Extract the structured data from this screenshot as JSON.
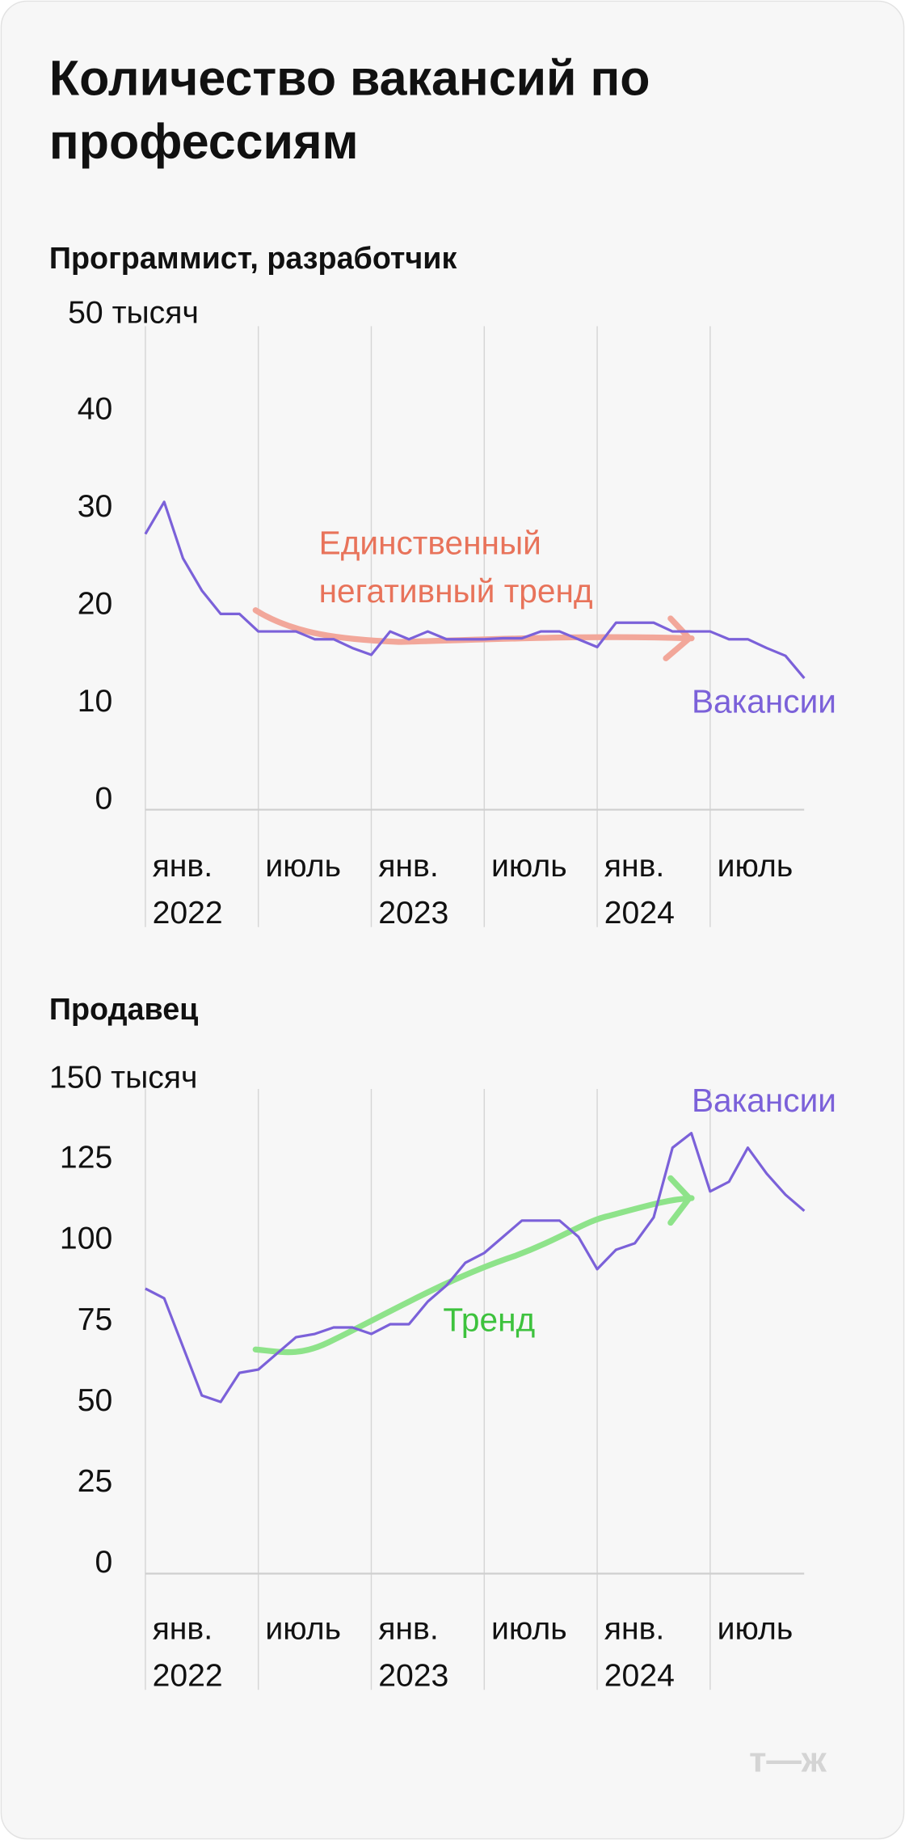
{
  "title": "Количество вакансий по профессиям",
  "logo": "т—ж",
  "chart_data": [
    {
      "type": "line",
      "title": "Программист, разработчик",
      "categories": [
        "янв. 2022",
        null,
        null,
        null,
        null,
        null,
        "июль",
        null,
        null,
        null,
        null,
        null,
        "янв. 2023",
        null,
        null,
        null,
        null,
        null,
        "июль",
        null,
        null,
        null,
        null,
        null,
        "янв. 2024",
        null,
        null,
        null,
        null,
        null,
        "июль",
        null,
        null,
        null,
        null,
        null
      ],
      "series": [
        {
          "name": "Вакансии",
          "color": "#7b61d9",
          "values": [
            28.3,
            31.6,
            25.8,
            22.5,
            20.1,
            20.1,
            18.3,
            18.3,
            18.3,
            17.5,
            17.5,
            16.6,
            15.9,
            18.3,
            17.5,
            18.3,
            17.5,
            17.5,
            17.5,
            17.6,
            17.6,
            18.3,
            18.3,
            17.5,
            16.7,
            19.2,
            19.2,
            19.2,
            18.3,
            18.3,
            18.3,
            17.5,
            17.5,
            16.6,
            15.8,
            13.5
          ]
        }
      ],
      "ylim": [
        0,
        50
      ],
      "yticks": [
        0,
        10,
        20,
        30,
        40,
        {
          "value": 50,
          "label": "50 тысяч"
        }
      ],
      "annotation": {
        "lines": [
          "Единственный",
          "негативный тренд"
        ],
        "color": "#e8735a",
        "arrow_color": "#f2a79a"
      }
    },
    {
      "type": "line",
      "title": "Продавец",
      "categories": [
        "янв. 2022",
        null,
        null,
        null,
        null,
        null,
        "июль",
        null,
        null,
        null,
        null,
        null,
        "янв. 2023",
        null,
        null,
        null,
        null,
        null,
        "июль",
        null,
        null,
        null,
        null,
        null,
        "янв. 2024",
        null,
        null,
        null,
        null,
        null,
        "июль",
        null,
        null,
        null,
        null,
        null
      ],
      "series": [
        {
          "name": "Вакансии",
          "color": "#7b61d9",
          "values": [
            88,
            85,
            70,
            55,
            53,
            62,
            63,
            68,
            73,
            74,
            76,
            76,
            74,
            77,
            77,
            84,
            89,
            96,
            99,
            104,
            109,
            109,
            109,
            104,
            94,
            100,
            102,
            110,
            131.5,
            136,
            118,
            121,
            131.5,
            123.5,
            117,
            112
          ]
        }
      ],
      "ylim": [
        0,
        150
      ],
      "yticks": [
        0,
        25,
        50,
        75,
        100,
        125,
        {
          "value": 150,
          "label": "150 тысяч"
        }
      ],
      "annotation": {
        "lines": [
          "Тренд"
        ],
        "color": "#3dc23d",
        "arrow_color": "#8ee38a"
      }
    }
  ]
}
